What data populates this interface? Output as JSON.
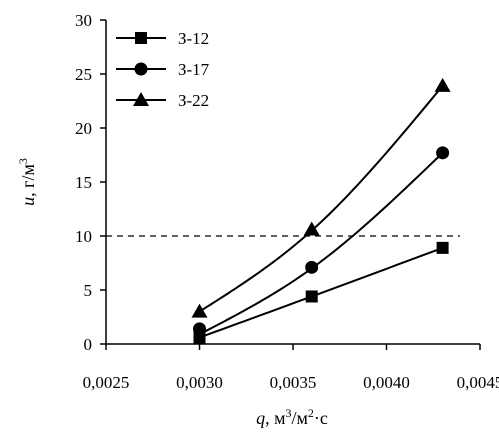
{
  "chart_data": {
    "type": "line",
    "xlabel": {
      "var": "q",
      "sep": ", ",
      "unit_a": "м",
      "sup_a": "3",
      "unit_b": "/м",
      "sup_b": "2",
      "unit_c": "·с"
    },
    "ylabel": {
      "var": "u",
      "sep": ", ",
      "unit_a": "г/м",
      "sup_a": "3"
    },
    "xlim": [
      0.0025,
      0.0045
    ],
    "ylim": [
      0,
      30
    ],
    "x_ticks": [
      "0,0025",
      "0,0030",
      "0,0035",
      "0,0040",
      "0,0045"
    ],
    "x_tick_values": [
      0.0025,
      0.003,
      0.0035,
      0.004,
      0.0045
    ],
    "y_ticks": [
      "0",
      "5",
      "10",
      "15",
      "20",
      "25",
      "30"
    ],
    "y_tick_values": [
      0,
      5,
      10,
      15,
      20,
      25,
      30
    ],
    "grid": false,
    "reference_line": {
      "y": 10,
      "style": "dashed"
    },
    "legend_position": "top-left",
    "series": [
      {
        "name": "З-12",
        "marker": "square",
        "x": [
          0.003,
          0.0036,
          0.0043
        ],
        "y": [
          0.6,
          4.4,
          8.9
        ],
        "curve": [
          0.6,
          4.4,
          8.9
        ]
      },
      {
        "name": "З-17",
        "marker": "circle",
        "x": [
          0.003,
          0.0036,
          0.0043
        ],
        "y": [
          1.4,
          7.1,
          17.7
        ],
        "curve": [
          0.9,
          7.0,
          17.7
        ]
      },
      {
        "name": "З-22",
        "marker": "triangle",
        "x": [
          0.003,
          0.0036,
          0.0043
        ],
        "y": [
          3.0,
          10.6,
          23.9
        ],
        "curve": [
          3.0,
          10.5,
          23.9
        ]
      }
    ]
  }
}
